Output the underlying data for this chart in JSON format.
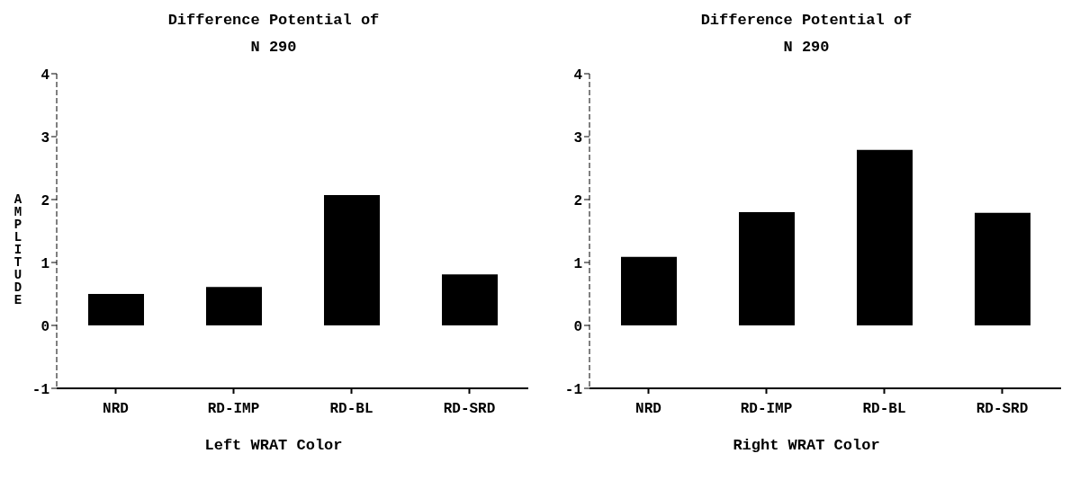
{
  "chart_data": [
    {
      "type": "bar",
      "title": "Difference Potential of\nN 290",
      "xlabel": "Left WRAT Color",
      "ylabel": "AMPLITUDE",
      "categories": [
        "NRD",
        "RD-IMP",
        "RD-BL",
        "RD-SRD"
      ],
      "values": [
        0.5,
        0.61,
        2.07,
        0.81
      ],
      "color": "#000000",
      "ylim": [
        -1,
        4
      ],
      "yticks": [
        -1,
        0,
        1,
        2,
        3,
        4
      ],
      "grid": false
    },
    {
      "type": "bar",
      "title": "Difference Potential of\nN 290",
      "xlabel": "Right WRAT Color",
      "categories": [
        "NRD",
        "RD-IMP",
        "RD-BL",
        "RD-SRD"
      ],
      "values": [
        1.09,
        1.8,
        2.79,
        1.79
      ],
      "color": "#000000",
      "ylim": [
        -1,
        4
      ],
      "yticks": [
        -1,
        0,
        1,
        2,
        3,
        4
      ],
      "grid": false
    }
  ]
}
